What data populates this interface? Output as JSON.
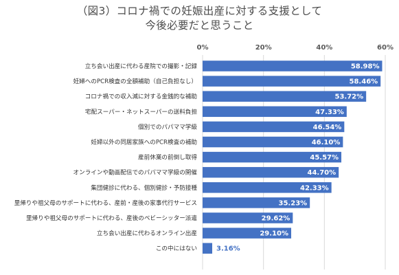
{
  "chart_data": {
    "type": "bar",
    "orientation": "horizontal",
    "title": "（図3）コロナ禍での妊娠出産に対する支援として",
    "subtitle": "今後必要だと思うこと",
    "categories": [
      "立ち会い出産に代わる産院での撮影・記録",
      "妊婦へのPCR検査の全額補助（自己負担なし）",
      "コロナ禍での収入減に対する金銭的な補助",
      "宅配スーパー・ネットスーパーの送料負担",
      "個別でのパパママ学級",
      "妊婦以外の同居家族へのPCR検査の補助",
      "産前休業の前倒し取得",
      "オンラインや動画配信でのパパママ学級の開催",
      "集団健診に代わる、個別健診・予防接種",
      "里帰りや祖父母のサポートに代わる、産前・産後の家事代行サービス",
      "里帰りや祖父母のサポートに代わる、産後のベビーシッター派遣",
      "立ち会い出産に代わるオンライン出産",
      "この中にはない"
    ],
    "values": [
      58.98,
      58.46,
      53.72,
      47.33,
      46.54,
      46.1,
      45.57,
      44.7,
      42.33,
      35.23,
      29.62,
      29.1,
      3.16
    ],
    "value_labels": [
      "58.98%",
      "58.46%",
      "53.72%",
      "47.33%",
      "46.54%",
      "46.10%",
      "45.57%",
      "44.70%",
      "42.33%",
      "35.23%",
      "29.62%",
      "29.10%",
      "3.16%"
    ],
    "xticks": [
      "0%",
      "20%",
      "40%",
      "60%"
    ],
    "xtick_values": [
      0,
      20,
      40,
      60
    ],
    "xlim": [
      0,
      60
    ],
    "grid": true,
    "axis_position": "top",
    "colors": {
      "bar": "#4472c4",
      "grid": "#d9d9d9",
      "label_inside": "#ffffff",
      "label_outside": "#4472c4"
    }
  }
}
